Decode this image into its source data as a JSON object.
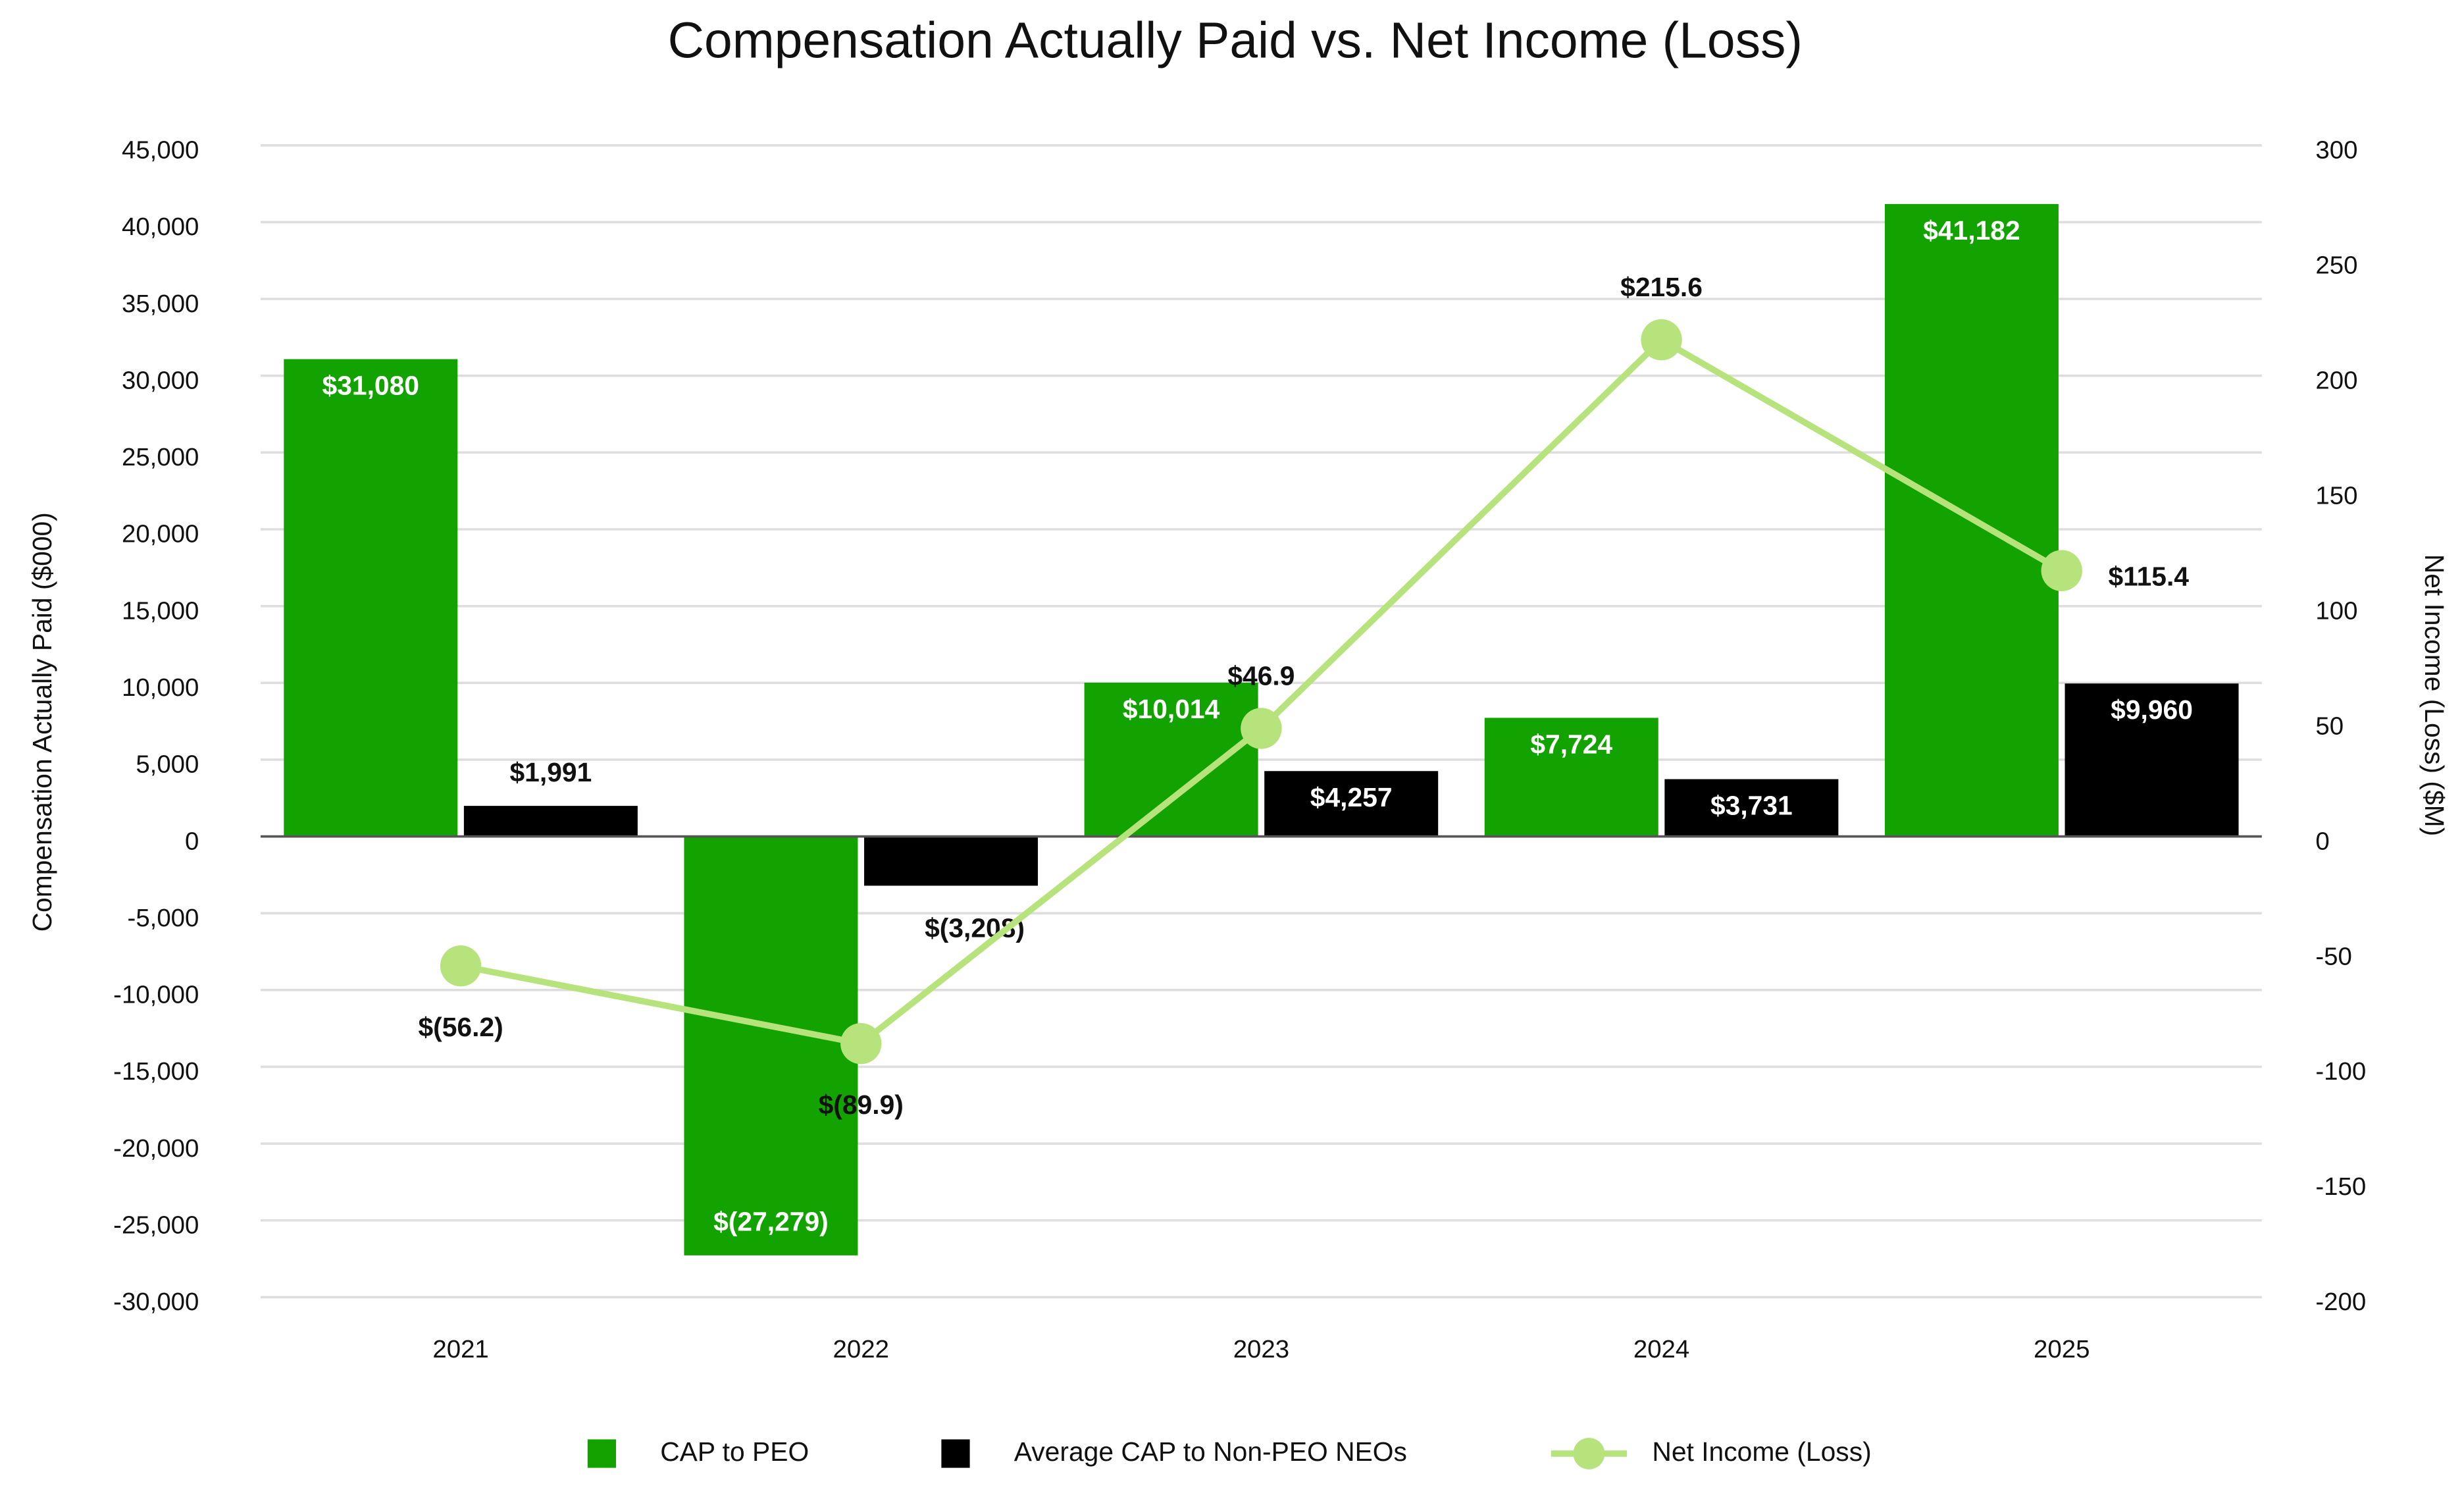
{
  "chart_data": {
    "type": "bar-line",
    "title": "Compensation Actually Paid vs. Net Income (Loss)",
    "y_label": "Compensation Actually Paid ($000)",
    "y2_label": "Net Income (Loss) ($M)",
    "categories": [
      "2021",
      "2022",
      "2023",
      "2024",
      "2025"
    ],
    "series": [
      {
        "name": "CAP to PEO",
        "type": "bar",
        "color": "#13a300",
        "values": [
          31080,
          -27279,
          10014,
          7724,
          41182
        ],
        "value_labels": [
          "$31,080",
          "$(27,279)",
          "$10,014",
          "$7,724",
          "$41,182"
        ]
      },
      {
        "name": "Average CAP to Non-PEO NEOs",
        "type": "bar",
        "color": "#000000",
        "values": [
          1991,
          -3208,
          4257,
          3731,
          9960
        ],
        "value_labels": [
          "$1,991",
          "$(3,208)",
          "$4,257",
          "$3,731",
          "$9,960"
        ]
      },
      {
        "name": "Net Income (Loss)",
        "type": "line",
        "axis": "y2",
        "color": "#b7e37d",
        "values": [
          -56.2,
          -89.9,
          46.9,
          215.6,
          115.4
        ],
        "value_labels": [
          "$(56.2)",
          "$(89.9)",
          "$46.9",
          "$215.6",
          "$115.4"
        ]
      }
    ],
    "ylim": [
      -30000,
      45000
    ],
    "yticks": [
      {
        "value": -30000,
        "label": "-30,000"
      },
      {
        "value": -25000,
        "label": "-25,000"
      },
      {
        "value": -20000,
        "label": "-20,000"
      },
      {
        "value": -15000,
        "label": "-15,000"
      },
      {
        "value": -10000,
        "label": "-10,000"
      },
      {
        "value": -5000,
        "label": "-5,000"
      },
      0,
      {
        "value": 5000,
        "label": "5,000"
      },
      {
        "value": 10000,
        "label": "10,000"
      },
      {
        "value": 15000,
        "label": "15,000"
      },
      {
        "value": 20000,
        "label": "20,000"
      },
      {
        "value": 25000,
        "label": "25,000"
      },
      {
        "value": 30000,
        "label": "30,000"
      },
      {
        "value": 35000,
        "label": "35,000"
      },
      {
        "value": 40000,
        "label": "40,000"
      },
      {
        "value": 45000,
        "label": "45,000"
      }
    ],
    "y2lim": [
      -200,
      300
    ],
    "y2ticks": [
      -200,
      -150,
      -100,
      -50,
      0,
      50,
      100,
      150,
      200,
      250,
      300
    ],
    "grid": true,
    "legend": "bottom"
  }
}
